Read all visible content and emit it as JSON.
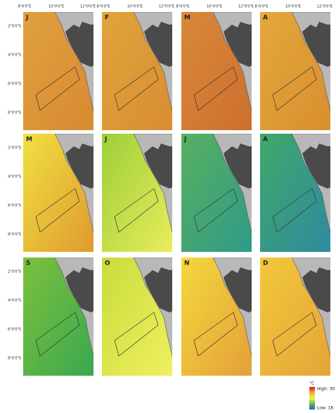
{
  "x_labels": [
    "8°0'0\"E",
    "10°0'0\"E",
    "12°0'0\"E"
  ],
  "y_labels": [
    "2°0'0\"S",
    "4°0'0\"S",
    "6°0'0\"S",
    "8°0'0\"S"
  ],
  "panels": [
    {
      "label": "J",
      "colors": [
        "#e0a040",
        "#d88a30"
      ]
    },
    {
      "label": "F",
      "colors": [
        "#e0a43c",
        "#d98d32"
      ]
    },
    {
      "label": "M",
      "colors": [
        "#d8883a",
        "#cd6f2e"
      ]
    },
    {
      "label": "A",
      "colors": [
        "#e4a83a",
        "#d98e30"
      ]
    },
    {
      "label": "M",
      "colors": [
        "#f0e040",
        "#e09a30"
      ]
    },
    {
      "label": "J",
      "colors": [
        "#9ccf3a",
        "#eaec5a"
      ]
    },
    {
      "label": "J",
      "colors": [
        "#58b060",
        "#2f9a88"
      ]
    },
    {
      "label": "A",
      "colors": [
        "#40a868",
        "#2f8aa0"
      ]
    },
    {
      "label": "S",
      "colors": [
        "#7cc03c",
        "#3aa850"
      ]
    },
    {
      "label": "O",
      "colors": [
        "#c8dc3c",
        "#f0f060"
      ]
    },
    {
      "label": "N",
      "colors": [
        "#f4d83c",
        "#e4a03a"
      ]
    },
    {
      "label": "D",
      "colors": [
        "#f2c83a",
        "#e4a43a"
      ]
    }
  ],
  "legend": {
    "unit": "°C",
    "high": "High: 30",
    "low": "Low: 18",
    "colors": [
      "#d7191c",
      "#f5a742",
      "#f4f44a",
      "#5cb85c",
      "#2b5fa8"
    ]
  }
}
